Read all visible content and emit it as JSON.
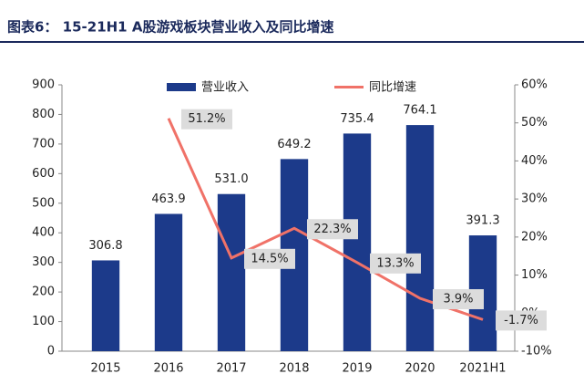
{
  "chart_data": {
    "type": "bar",
    "title": "图表6： 15-21H1 A股游戏板块营业收入及同比增速",
    "categories": [
      "2015",
      "2016",
      "2017",
      "2018",
      "2019",
      "2020",
      "2021H1"
    ],
    "series": [
      {
        "name": "营业收入",
        "color": "#1c3a8a",
        "values": [
          306.8,
          463.9,
          531.0,
          649.2,
          735.4,
          764.1,
          391.3
        ],
        "value_labels": [
          "306.8",
          "463.9",
          "531.0",
          "649.2",
          "735.4",
          "764.1",
          "391.3"
        ]
      },
      {
        "name": "同比增速",
        "type": "line",
        "axis": "y2",
        "color": "#f07268",
        "values": [
          null,
          51.2,
          14.5,
          22.3,
          13.3,
          3.9,
          -1.7
        ],
        "value_labels": [
          null,
          "51.2%",
          "14.5%",
          "22.3%",
          "13.3%",
          "3.9%",
          "-1.7%"
        ]
      }
    ],
    "ylim": [
      0,
      900
    ],
    "yticks": [
      0,
      100,
      200,
      300,
      400,
      500,
      600,
      700,
      800,
      900
    ],
    "y2lim": [
      -10,
      60
    ],
    "y2ticks": [
      {
        "value": -10,
        "label": "-10%"
      },
      {
        "value": 0,
        "label": "0%"
      },
      {
        "value": 10,
        "label": "10%"
      },
      {
        "value": 20,
        "label": "20%"
      },
      {
        "value": 30,
        "label": "30%"
      },
      {
        "value": 40,
        "label": "40%"
      },
      {
        "value": 50,
        "label": "50%"
      },
      {
        "value": 60,
        "label": "60%"
      }
    ],
    "legend": "top"
  }
}
